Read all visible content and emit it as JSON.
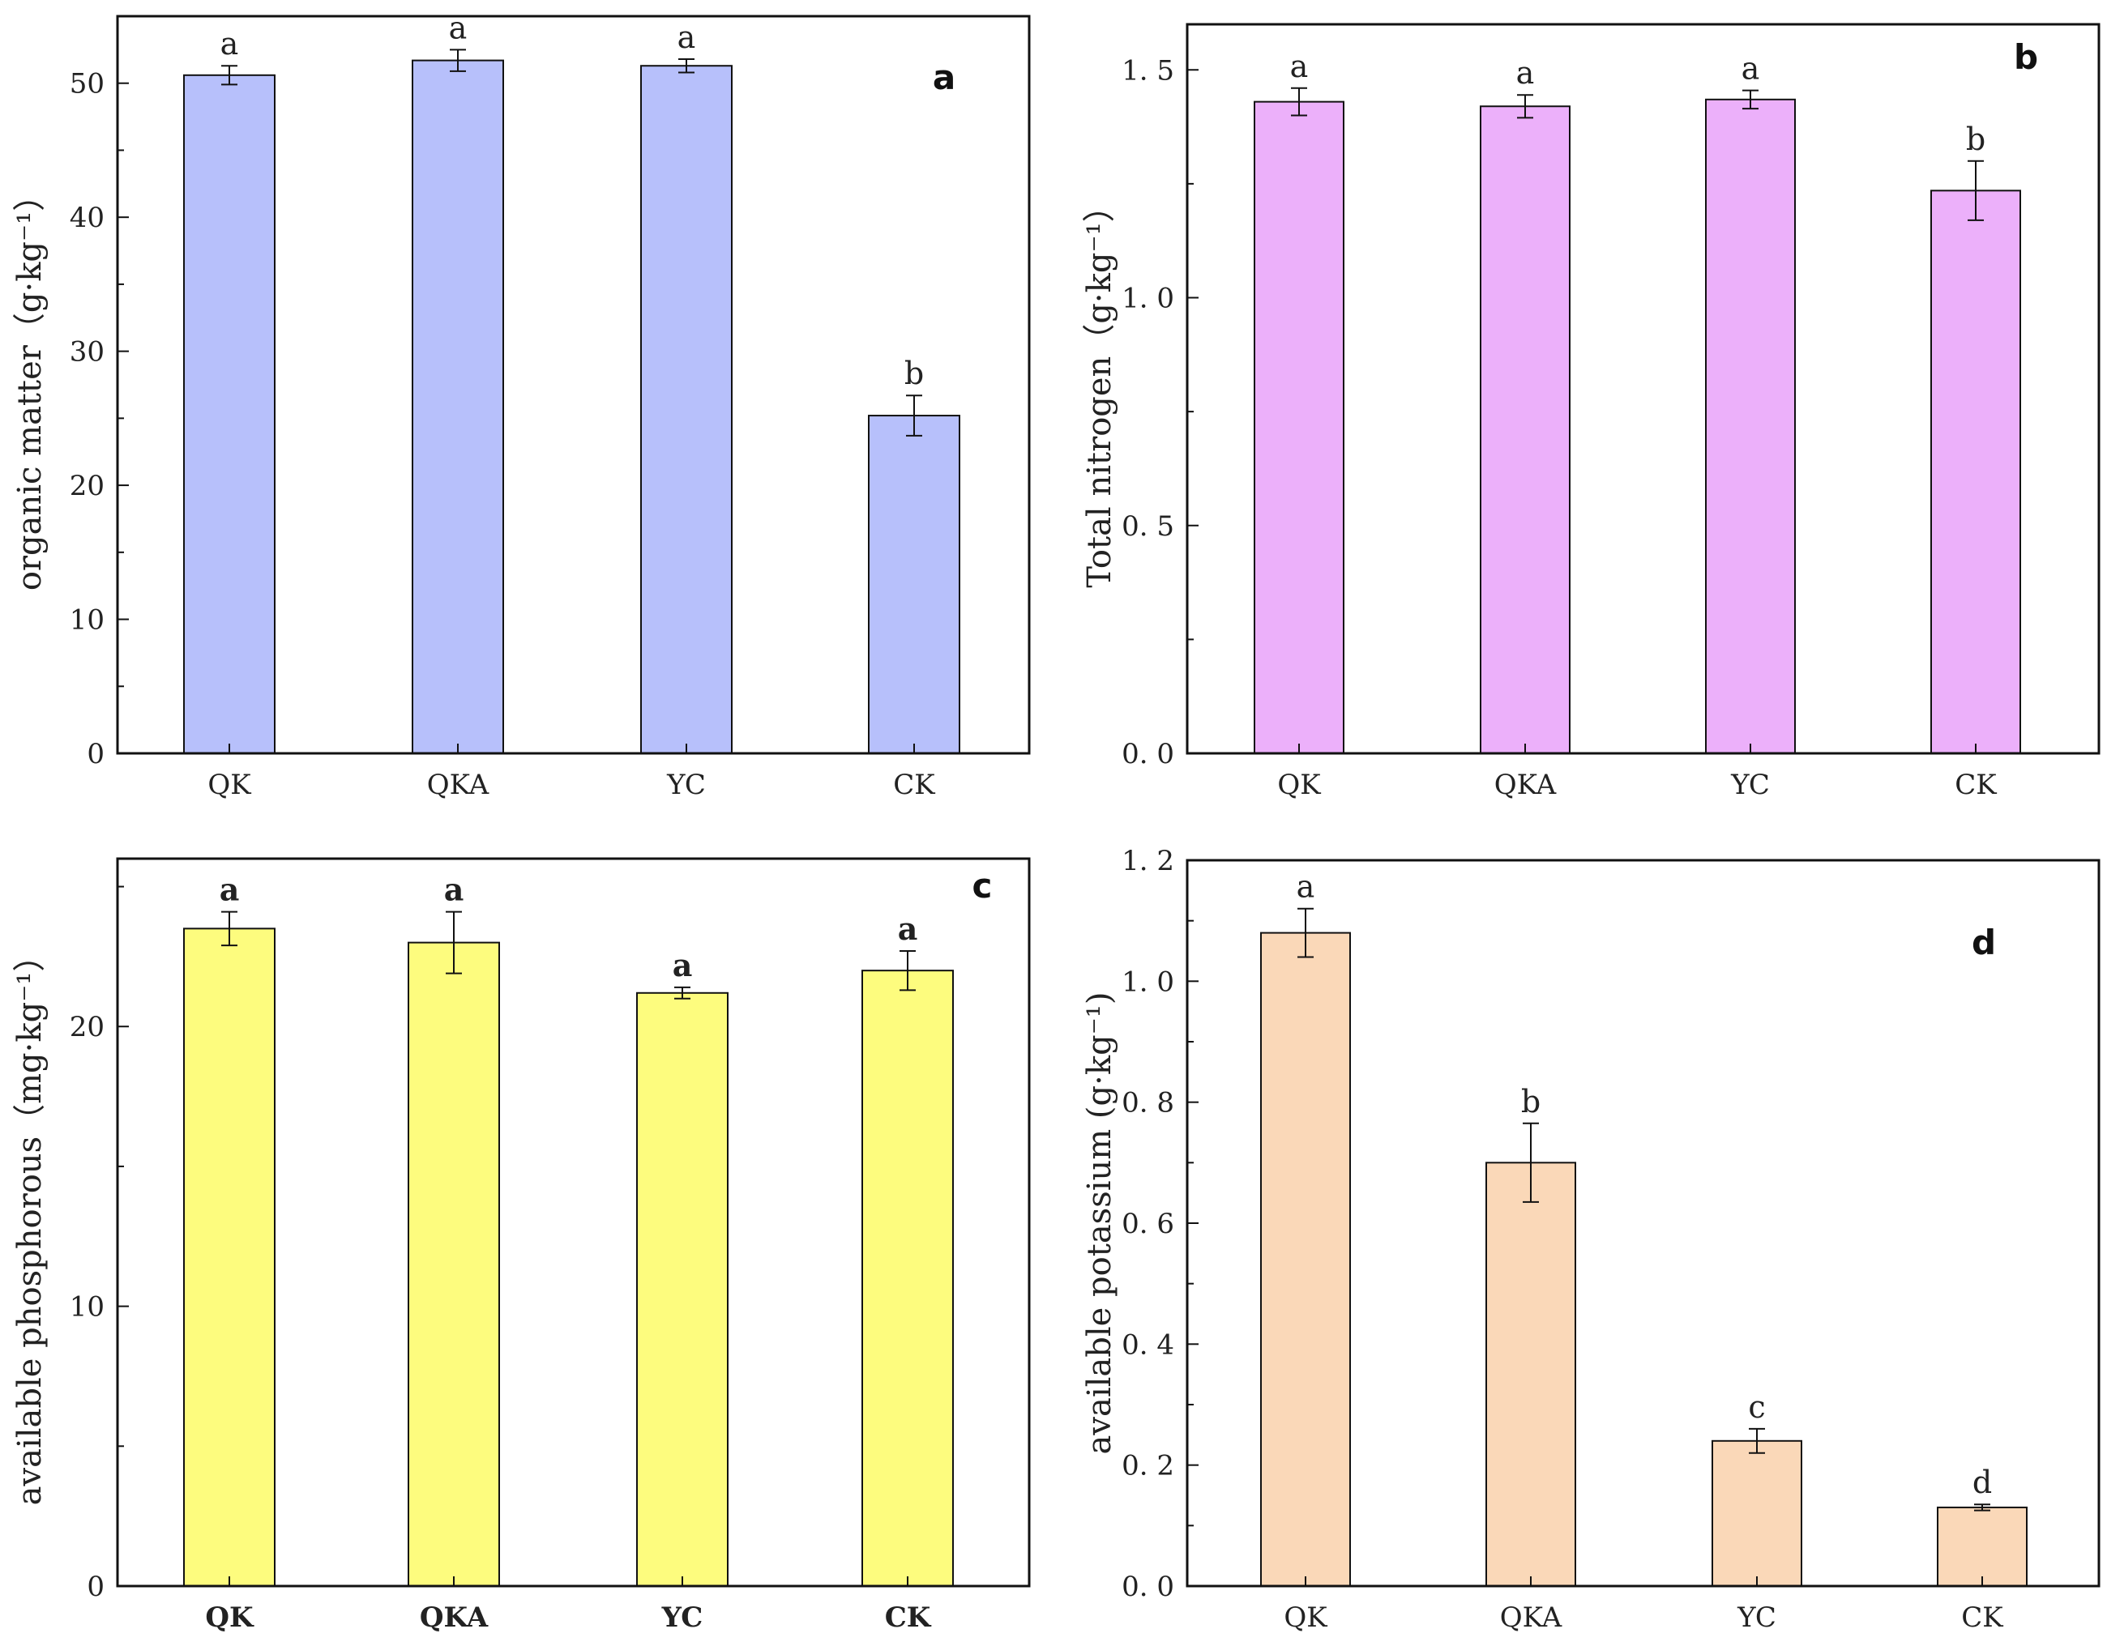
{
  "chart_data": [
    {
      "type": "bar",
      "panel_label": "a",
      "categories": [
        "QK",
        "QKA",
        "YC",
        "CK"
      ],
      "values": [
        50.6,
        51.7,
        51.3,
        25.2
      ],
      "errors": [
        0.7,
        0.8,
        0.5,
        1.5
      ],
      "significance": [
        "a",
        "a",
        "a",
        "b"
      ],
      "ylabel": "organic matter（g·kg⁻¹）",
      "ylim": [
        0,
        55
      ],
      "yticks": [
        0,
        10,
        20,
        30,
        40,
        50
      ],
      "ytick_labels": [
        "0",
        "10",
        "20",
        "30",
        "40",
        "50"
      ],
      "bar_color": "#b7c0fb",
      "grid": false
    },
    {
      "type": "bar",
      "panel_label": "b",
      "categories": [
        "QK",
        "QKA",
        "YC",
        "CK"
      ],
      "values": [
        1.43,
        1.42,
        1.435,
        1.235
      ],
      "errors": [
        0.03,
        0.025,
        0.02,
        0.065
      ],
      "significance": [
        "a",
        "a",
        "a",
        "b"
      ],
      "ylabel": "Total nitrogen（g·kg⁻¹）",
      "ylim": [
        0,
        1.6
      ],
      "yticks": [
        0,
        0.5,
        1.0,
        1.5
      ],
      "ytick_labels": [
        "0. 0",
        "0. 5",
        "1. 0",
        "1. 5"
      ],
      "bar_color": "#ecb0fa",
      "grid": false
    },
    {
      "type": "bar",
      "panel_label": "c",
      "categories": [
        "QK",
        "QKA",
        "YC",
        "CK"
      ],
      "values": [
        23.5,
        23.0,
        21.2,
        22.0
      ],
      "errors": [
        0.6,
        1.1,
        0.2,
        0.7
      ],
      "significance": [
        "a",
        "a",
        "a",
        "a"
      ],
      "ylabel": "available phosphorous（mg·kg⁻¹）",
      "ylim": [
        0,
        26
      ],
      "yticks": [
        0,
        10,
        20
      ],
      "ytick_labels": [
        "0",
        "10",
        "20"
      ],
      "bar_color": "#fdfc7e",
      "grid": false
    },
    {
      "type": "bar",
      "panel_label": "d",
      "categories": [
        "QK",
        "QKA",
        "YC",
        "CK"
      ],
      "values": [
        1.08,
        0.7,
        0.24,
        0.13
      ],
      "errors": [
        0.04,
        0.065,
        0.02,
        0.005
      ],
      "significance": [
        "a",
        "b",
        "c",
        "d"
      ],
      "ylabel": "available potassium (g·kg⁻¹)",
      "ylim": [
        0,
        1.2
      ],
      "yticks": [
        0,
        0.2,
        0.4,
        0.6,
        0.8,
        1.0,
        1.2
      ],
      "ytick_labels": [
        "0. 0",
        "0. 2",
        "0. 4",
        "0. 6",
        "0. 8",
        "1. 0",
        "1. 2"
      ],
      "bar_color": "#fad8b8",
      "grid": false
    }
  ]
}
